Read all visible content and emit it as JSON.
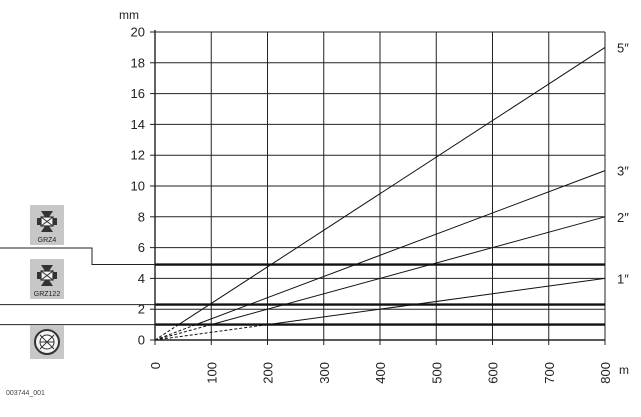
{
  "chart_data": {
    "type": "line",
    "ylabel": "mm",
    "xlabel": "m",
    "xlim": [
      0,
      800
    ],
    "ylim": [
      0,
      20
    ],
    "xticks": [
      0,
      100,
      200,
      300,
      400,
      500,
      600,
      700,
      800
    ],
    "yticks": [
      0,
      2,
      4,
      6,
      8,
      10,
      12,
      14,
      16,
      18,
      20
    ],
    "grid": true,
    "series": [
      {
        "name": "5″",
        "x": [
          0,
          800
        ],
        "y": [
          0,
          19.0
        ]
      },
      {
        "name": "3″",
        "x": [
          0,
          800
        ],
        "y": [
          0,
          11.0
        ]
      },
      {
        "name": "2″",
        "x": [
          0,
          800
        ],
        "y": [
          0,
          8.0
        ]
      },
      {
        "name": "1″",
        "x": [
          0,
          800
        ],
        "y": [
          0,
          4.0
        ]
      }
    ],
    "thresholds": [
      {
        "label": "GRZ4",
        "y": 4.9,
        "icon": "prism-grz4-icon"
      },
      {
        "label": "GRZ122",
        "y": 2.3,
        "icon": "prism-grz122-icon"
      },
      {
        "label": "",
        "y": 1.0,
        "icon": "round-prism-icon"
      }
    ],
    "figure_id": "003744_001"
  }
}
